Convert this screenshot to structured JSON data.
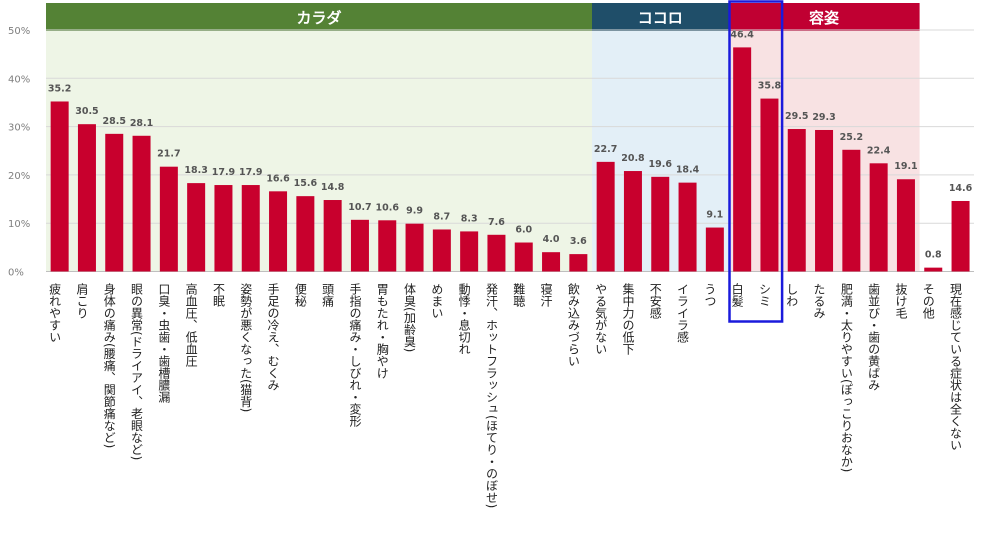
{
  "chart_data": {
    "type": "bar",
    "y_ticks": [
      "0%",
      "10%",
      "20%",
      "30%",
      "40%",
      "50%"
    ],
    "ylim": [
      0,
      50
    ],
    "grid": true,
    "groups": [
      {
        "label": "カラダ",
        "header_color": "#548235",
        "bg_color": "#eef5e6",
        "start": 0,
        "end": 19
      },
      {
        "label": "ココロ",
        "header_color": "#1f4e69",
        "bg_color": "#e3eff7",
        "start": 20,
        "end": 24
      },
      {
        "label": "容姿",
        "header_color": "#c00032",
        "bg_color": "#f8e2e3",
        "start": 25,
        "end": 31
      }
    ],
    "categories": [
      "疲れやすい",
      "肩こり",
      "身体の痛み(腰痛、関節痛など)",
      "眼の異常(ドライアイ、老眼など)",
      "口臭・虫歯・歯槽膿漏",
      "高血圧、低血圧",
      "不眠",
      "姿勢が悪くなった(猫背)",
      "手足の冷え、むくみ",
      "便秘",
      "頭痛",
      "手指の痛み・しびれ・変形",
      "胃もたれ・胸やけ",
      "体臭(加齢臭)",
      "めまい",
      "動悸・息切れ",
      "発汗、ホットフラッシュ(ほてり・のぼせ)",
      "難聴",
      "寝汗",
      "飲み込みづらい",
      "やる気がない",
      "集中力の低下",
      "不安感",
      "イライラ感",
      "うつ",
      "白髪",
      "シミ",
      "しわ",
      "たるみ",
      "肥満・太りやすい(ぽっこりおなか)",
      "歯並び・歯の黄ばみ",
      "抜け毛",
      "その他",
      "現在感じている症状は全くない"
    ],
    "values": [
      35.2,
      30.5,
      28.5,
      28.1,
      21.7,
      18.3,
      17.9,
      17.9,
      16.6,
      15.6,
      14.8,
      10.7,
      10.6,
      9.9,
      8.7,
      8.3,
      7.6,
      6.0,
      4.0,
      3.6,
      22.7,
      20.8,
      19.6,
      18.4,
      9.1,
      46.4,
      35.8,
      29.5,
      29.3,
      25.2,
      22.4,
      19.1,
      0.8,
      14.6
    ],
    "value_labels": [
      "35.2",
      "30.5",
      "28.5",
      "28.1",
      "21.7",
      "18.3",
      "17.9",
      "17.9",
      "16.6",
      "15.6",
      "14.8",
      "10.7",
      "10.6",
      "9.9",
      "8.7",
      "8.3",
      "7.6",
      "6.0",
      "4.0",
      "3.6",
      "22.7",
      "20.8",
      "19.6",
      "18.4",
      "9.1",
      "46.4",
      "35.8",
      "29.5",
      "29.3",
      "25.2",
      "22.4",
      "19.1",
      "0.8",
      "14.6"
    ],
    "bar_color": "#c8002d",
    "highlight": {
      "start": 25,
      "end": 26,
      "color": "#1a1adc"
    }
  }
}
